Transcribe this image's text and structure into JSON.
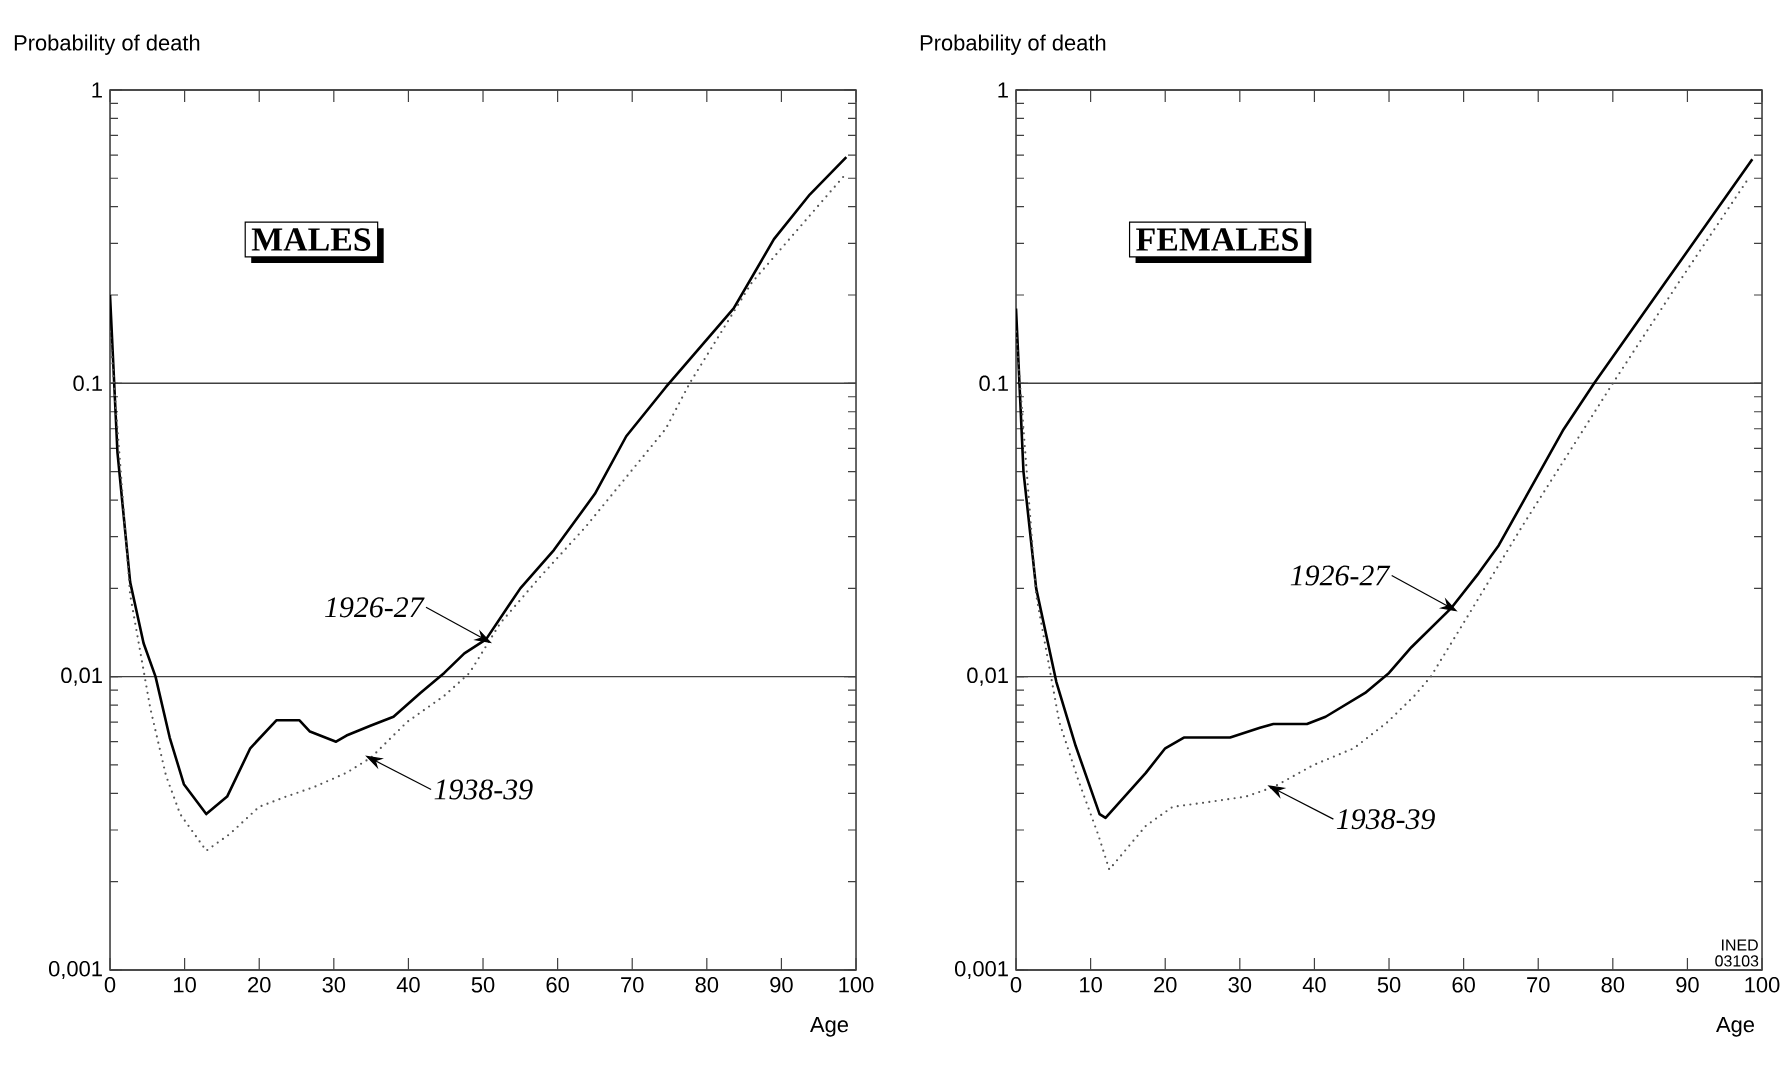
{
  "chart_data": [
    {
      "type": "line",
      "title": "MALES",
      "xlabel": "Age",
      "ylabel": "Probability of death",
      "log": true,
      "grid": "y",
      "marker": "none",
      "xlim": [
        0,
        100
      ],
      "xticks": [
        0,
        10,
        20,
        30,
        40,
        50,
        60,
        70,
        80,
        90,
        100
      ],
      "ylim": [
        0.001,
        1
      ],
      "yticks": [
        {
          "value": 0.001,
          "label": "0,001"
        },
        {
          "value": 0.01,
          "label": "0,01"
        },
        {
          "value": 0.1,
          "label": "0.1"
        },
        {
          "value": 1,
          "label": "1"
        }
      ],
      "series": [
        {
          "name": "1926-27",
          "color": "#000000",
          "line_style": "solid",
          "x": [
            0,
            1,
            2.7,
            4.5,
            6.1,
            8,
            9.9,
            12.9,
            15.7,
            18.8,
            22.3,
            25.4,
            26.8,
            30.3,
            31.7,
            34.9,
            38,
            41.6,
            44.8,
            47.5,
            50.4,
            55,
            59.5,
            65,
            69.2,
            74.5,
            83.6,
            89,
            93.8,
            98.7
          ],
          "values": [
            0.2,
            0.058,
            0.021,
            0.013,
            0.01,
            0.0062,
            0.0043,
            0.0034,
            0.0039,
            0.0057,
            0.0071,
            0.0071,
            0.0065,
            0.006,
            0.0063,
            0.0068,
            0.0073,
            0.0088,
            0.0103,
            0.012,
            0.0134,
            0.02,
            0.027,
            0.042,
            0.066,
            0.097,
            0.18,
            0.31,
            0.44,
            0.59
          ]
        },
        {
          "name": "1938-39",
          "color": "#555555",
          "line_style": "dotted",
          "x": [
            0,
            2.7,
            5.4,
            7.5,
            9.4,
            12.9,
            16,
            20,
            23.6,
            27.3,
            31.7,
            35,
            39.8,
            44.8,
            48.2,
            52.3,
            57.6,
            63.8,
            74.5,
            77.7,
            86,
            98.7
          ],
          "values": [
            0.15,
            0.019,
            0.0078,
            0.0046,
            0.0034,
            0.00255,
            0.0029,
            0.0036,
            0.0039,
            0.0042,
            0.0047,
            0.0053,
            0.007,
            0.0086,
            0.0103,
            0.0152,
            0.0218,
            0.0325,
            0.07,
            0.1,
            0.22,
            0.52
          ]
        }
      ]
    },
    {
      "type": "line",
      "title": "FEMALES",
      "xlabel": "Age",
      "ylabel": "Probability of death",
      "log": true,
      "grid": "y",
      "marker": "none",
      "xlim": [
        0,
        100
      ],
      "xticks": [
        0,
        10,
        20,
        30,
        40,
        50,
        60,
        70,
        80,
        90,
        100
      ],
      "ylim": [
        0.001,
        1
      ],
      "yticks": [
        {
          "value": 0.001,
          "label": "0,001"
        },
        {
          "value": 0.01,
          "label": "0,01"
        },
        {
          "value": 0.1,
          "label": "0.1"
        },
        {
          "value": 1,
          "label": "1"
        }
      ],
      "annotations": [
        "INED 03103"
      ],
      "series": [
        {
          "name": "1926-27",
          "color": "#000000",
          "line_style": "solid",
          "x": [
            0,
            1,
            2.7,
            5.4,
            8,
            11.2,
            12,
            17.4,
            20,
            22.5,
            28.7,
            32.7,
            34.5,
            39,
            41.5,
            46.8,
            50,
            53,
            58.4,
            62,
            64.7,
            73.3,
            77.5,
            87,
            98.7
          ],
          "values": [
            0.18,
            0.05,
            0.02,
            0.0096,
            0.0058,
            0.0034,
            0.0033,
            0.0047,
            0.0057,
            0.0062,
            0.0062,
            0.0067,
            0.0069,
            0.0069,
            0.0073,
            0.0088,
            0.0103,
            0.0126,
            0.0172,
            0.0225,
            0.028,
            0.069,
            0.1,
            0.22,
            0.58
          ]
        },
        {
          "name": "1938-39",
          "color": "#555555",
          "line_style": "dotted",
          "x": [
            0,
            2.7,
            5.8,
            8.4,
            11,
            12.5,
            17.4,
            21,
            24.6,
            30.8,
            34.5,
            39.9,
            45.3,
            49.8,
            53.4,
            55.6,
            60.5,
            68,
            80,
            88.8,
            98.2
          ],
          "values": [
            0.15,
            0.019,
            0.007,
            0.0044,
            0.0029,
            0.0022,
            0.0031,
            0.0036,
            0.0037,
            0.0039,
            0.0042,
            0.005,
            0.0057,
            0.007,
            0.0086,
            0.01,
            0.016,
            0.033,
            0.1,
            0.22,
            0.5
          ]
        }
      ]
    }
  ]
}
